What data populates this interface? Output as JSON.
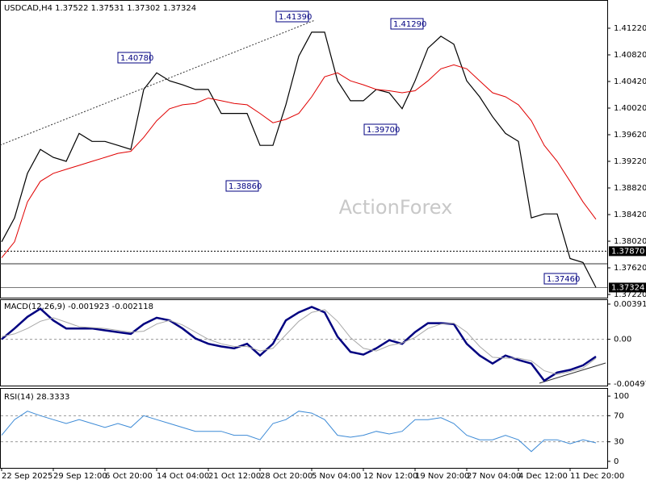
{
  "header": "USDCAD,H4  1.37522 1.37531 1.37302 1.37324",
  "watermark": "ActionForex",
  "chart_data": [
    {
      "type": "line",
      "categories": [
        "22 Sep 2025",
        null,
        null,
        null,
        "29 Sep 12:00",
        null,
        null,
        null,
        "6 Oct 20:00",
        null,
        null,
        null,
        "14 Oct 04:00",
        null,
        null,
        null,
        "21 Oct 12:00",
        null,
        null,
        null,
        "28 Oct 20:00",
        null,
        null,
        null,
        "5 Nov 04:00",
        null,
        null,
        null,
        "12 Nov 12:00",
        null,
        null,
        null,
        "19 Nov 20:00",
        null,
        null,
        null,
        "27 Nov 04:00",
        null,
        null,
        null,
        "4 Dec 12:00",
        null,
        null,
        null,
        "11 Dec 20:00",
        null,
        null
      ],
      "series": [
        {
          "name": "USDCAD",
          "color": "#000000",
          "values": [
            1.3801,
            1.3837,
            1.3904,
            1.394,
            1.3928,
            1.3922,
            1.3964,
            1.3952,
            1.3952,
            1.3946,
            1.394,
            1.403,
            1.4055,
            1.4043,
            1.4037,
            1.403,
            1.403,
            1.3994,
            1.3994,
            1.3994,
            1.3946,
            1.3946,
            1.4007,
            1.408,
            1.4116,
            1.4116,
            1.4043,
            1.4013,
            1.4013,
            1.403,
            1.4025,
            1.4001,
            1.4043,
            1.4092,
            1.411,
            1.4098,
            1.4043,
            1.4019,
            1.3989,
            1.3964,
            1.3952,
            1.3837,
            1.3843,
            1.3843,
            1.3776,
            1.377,
            1.37324
          ]
        },
        {
          "name": "MA",
          "color": "#e00000",
          "values": [
            1.3777,
            1.3801,
            1.3861,
            1.3892,
            1.3904,
            1.391,
            1.3916,
            1.3922,
            1.3928,
            1.3934,
            1.3937,
            1.3958,
            1.3983,
            1.4001,
            1.4007,
            1.4009,
            1.4017,
            1.4013,
            1.4009,
            1.4007,
            1.3994,
            1.398,
            1.3985,
            1.3994,
            1.4019,
            1.4049,
            1.4055,
            1.4043,
            1.4037,
            1.403,
            1.4028,
            1.4025,
            1.4028,
            1.4043,
            1.4061,
            1.4067,
            1.4061,
            1.4043,
            1.4025,
            1.4019,
            1.4007,
            1.3983,
            1.3946,
            1.3922,
            1.3892,
            1.3861,
            1.3835
          ]
        }
      ],
      "ylim": [
        1.37184,
        1.41644
      ],
      "yticks": [
        {
          "value": 1.4122,
          "label": "1.41220"
        },
        {
          "value": 1.4082,
          "label": "1.40820"
        },
        {
          "value": 1.4042,
          "label": "1.40420"
        },
        {
          "value": 1.4002,
          "label": "1.40020"
        },
        {
          "value": 1.3962,
          "label": "1.39620"
        },
        {
          "value": 1.3922,
          "label": "1.39220"
        },
        {
          "value": 1.3882,
          "label": "1.38820"
        },
        {
          "value": 1.3842,
          "label": "1.38420"
        },
        {
          "value": 1.3802,
          "label": "1.38020"
        },
        {
          "value": 1.3762,
          "label": "1.37620"
        },
        {
          "value": 1.3722,
          "label": "1.37220"
        }
      ],
      "level": {
        "value": 1.3787,
        "label": "1.37870"
      },
      "last_price": {
        "value": 1.37324,
        "label": "1.37324"
      },
      "annotations": [
        "1.41390",
        "1.40780",
        "1.38860",
        "1.39700",
        "1.41290",
        "1.37460"
      ]
    },
    {
      "type": "line",
      "title": "MACD(12,26,9) -0.001923 -0.002118",
      "series": [
        {
          "name": "MACD",
          "color": "#000080",
          "values": [
            0,
            0.0012,
            0.0025,
            0.0034,
            0.0021,
            0.0012,
            0.0012,
            0.0012,
            0.001,
            0.0008,
            0.0006,
            0.0017,
            0.0024,
            0.0021,
            0.0012,
            0.0001,
            -0.0005,
            -0.0008,
            -0.001,
            -0.0005,
            -0.0018,
            -0.0005,
            0.0021,
            0.003,
            0.0036,
            0.003,
            0.0003,
            -0.0014,
            -0.0017,
            -0.001,
            -0.0001,
            -0.0005,
            0.0008,
            0.0018,
            0.0018,
            0.0017,
            -0.0005,
            -0.0018,
            -0.0027,
            -0.0018,
            -0.0023,
            -0.0027,
            -0.0046,
            -0.0037,
            -0.0034,
            -0.0029,
            -0.001923
          ]
        },
        {
          "name": "Signal",
          "color": "#a8a8a8",
          "values": [
            0.0003,
            0.0006,
            0.0012,
            0.002,
            0.0024,
            0.0019,
            0.0014,
            0.0013,
            0.0012,
            0.001,
            0.0008,
            0.0009,
            0.0017,
            0.0021,
            0.0016,
            0.0008,
            0,
            -0.0005,
            -0.0008,
            -0.0008,
            -0.0013,
            -0.001,
            0.0005,
            0.002,
            0.003,
            0.0033,
            0.002,
            0.0002,
            -0.001,
            -0.0013,
            -0.0007,
            -0.0004,
            0.0002,
            0.0012,
            0.0017,
            0.0018,
            0.0008,
            -0.0008,
            -0.002,
            -0.0021,
            -0.0021,
            -0.0024,
            -0.0035,
            -0.0039,
            -0.0036,
            -0.0032,
            -0.002118
          ]
        }
      ],
      "ylim": [
        -0.00497,
        0.003914
      ],
      "yticks": [
        0.003914,
        {
          "value": 0,
          "label": "0.00"
        },
        -0.00497
      ]
    },
    {
      "type": "line",
      "title": "RSI(14) 28.3333",
      "series": [
        {
          "name": "RSI",
          "color": "#3c8ad6",
          "values": [
            40,
            64,
            77,
            70,
            64,
            58,
            64,
            58,
            52,
            58,
            52,
            70,
            64,
            58,
            52,
            46,
            46,
            46,
            40,
            40,
            33,
            58,
            64,
            77,
            74,
            64,
            40,
            37,
            40,
            46,
            42,
            46,
            64,
            64,
            67,
            58,
            40,
            33,
            33,
            40,
            33,
            15,
            33,
            33,
            27,
            33,
            28.3333
          ]
        }
      ],
      "ylim": [
        -10,
        110
      ],
      "yticks": [
        100,
        70,
        30,
        0
      ]
    }
  ]
}
